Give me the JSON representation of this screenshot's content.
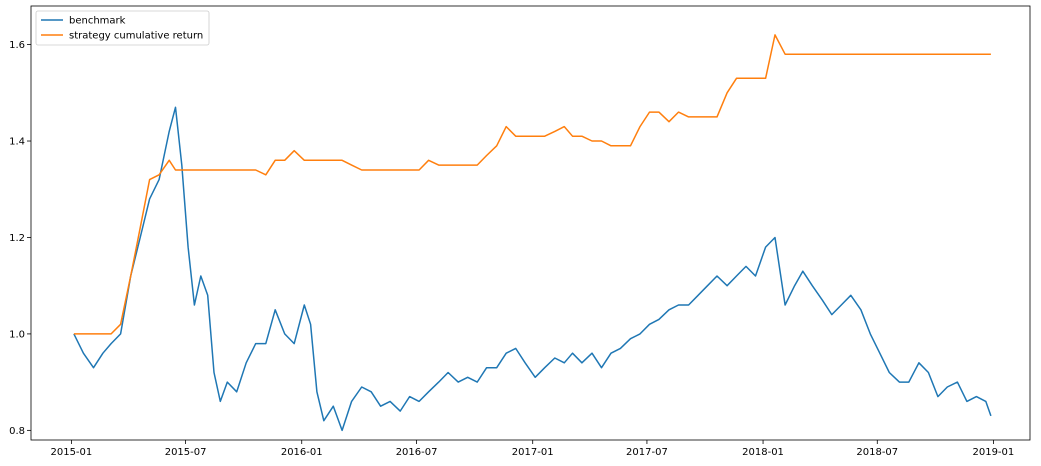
{
  "chart_data": {
    "type": "line",
    "title": "",
    "xlabel": "",
    "ylabel": "",
    "x_ticks": [
      "2015-01",
      "2015-07",
      "2016-01",
      "2016-07",
      "2017-01",
      "2017-07",
      "2018-01",
      "2018-07",
      "2019-01"
    ],
    "y_ticks": [
      "0.8",
      "1.0",
      "1.2",
      "1.4",
      "1.6"
    ],
    "xlim": [
      "2014-10-29",
      "2019-02-28"
    ],
    "ylim": [
      0.78,
      1.68
    ],
    "grid": false,
    "legend_position": "top-left",
    "x": [
      "2015-01-05",
      "2015-01-20",
      "2015-02-05",
      "2015-02-20",
      "2015-03-05",
      "2015-03-20",
      "2015-04-05",
      "2015-04-20",
      "2015-05-05",
      "2015-05-20",
      "2015-06-05",
      "2015-06-15",
      "2015-06-25",
      "2015-07-05",
      "2015-07-15",
      "2015-07-25",
      "2015-08-05",
      "2015-08-15",
      "2015-08-25",
      "2015-09-05",
      "2015-09-20",
      "2015-10-05",
      "2015-10-20",
      "2015-11-05",
      "2015-11-20",
      "2015-12-05",
      "2015-12-20",
      "2016-01-05",
      "2016-01-15",
      "2016-01-25",
      "2016-02-05",
      "2016-02-20",
      "2016-03-05",
      "2016-03-20",
      "2016-04-05",
      "2016-04-20",
      "2016-05-05",
      "2016-05-20",
      "2016-06-05",
      "2016-06-20",
      "2016-07-05",
      "2016-07-20",
      "2016-08-05",
      "2016-08-20",
      "2016-09-05",
      "2016-09-20",
      "2016-10-05",
      "2016-10-20",
      "2016-11-05",
      "2016-11-20",
      "2016-12-05",
      "2016-12-20",
      "2017-01-05",
      "2017-01-20",
      "2017-02-05",
      "2017-02-20",
      "2017-03-05",
      "2017-03-20",
      "2017-04-05",
      "2017-04-20",
      "2017-05-05",
      "2017-05-20",
      "2017-06-05",
      "2017-06-20",
      "2017-07-05",
      "2017-07-20",
      "2017-08-05",
      "2017-08-20",
      "2017-09-05",
      "2017-09-20",
      "2017-10-05",
      "2017-10-20",
      "2017-11-05",
      "2017-11-20",
      "2017-12-05",
      "2017-12-20",
      "2018-01-05",
      "2018-01-20",
      "2018-02-05",
      "2018-02-20",
      "2018-03-05",
      "2018-03-20",
      "2018-04-05",
      "2018-04-20",
      "2018-05-05",
      "2018-05-20",
      "2018-06-05",
      "2018-06-20",
      "2018-07-05",
      "2018-07-20",
      "2018-08-05",
      "2018-08-20",
      "2018-09-05",
      "2018-09-20",
      "2018-10-05",
      "2018-10-20",
      "2018-11-05",
      "2018-11-20",
      "2018-12-05",
      "2018-12-20",
      "2018-12-28"
    ],
    "series": [
      {
        "name": "benchmark",
        "color": "#1f77b4",
        "values": [
          1.0,
          0.96,
          0.93,
          0.96,
          0.98,
          1.0,
          1.12,
          1.2,
          1.28,
          1.32,
          1.42,
          1.47,
          1.35,
          1.18,
          1.06,
          1.12,
          1.08,
          0.92,
          0.86,
          0.9,
          0.88,
          0.94,
          0.98,
          0.98,
          1.05,
          1.0,
          0.98,
          1.06,
          1.02,
          0.88,
          0.82,
          0.85,
          0.8,
          0.86,
          0.89,
          0.88,
          0.85,
          0.86,
          0.84,
          0.87,
          0.86,
          0.88,
          0.9,
          0.92,
          0.9,
          0.91,
          0.9,
          0.93,
          0.93,
          0.96,
          0.97,
          0.94,
          0.91,
          0.93,
          0.95,
          0.94,
          0.96,
          0.94,
          0.96,
          0.93,
          0.96,
          0.97,
          0.99,
          1.0,
          1.02,
          1.03,
          1.05,
          1.06,
          1.06,
          1.08,
          1.1,
          1.12,
          1.1,
          1.12,
          1.14,
          1.12,
          1.18,
          1.2,
          1.06,
          1.1,
          1.13,
          1.1,
          1.07,
          1.04,
          1.06,
          1.08,
          1.05,
          1.0,
          0.96,
          0.92,
          0.9,
          0.9,
          0.94,
          0.92,
          0.87,
          0.89,
          0.9,
          0.86,
          0.87,
          0.86,
          0.83
        ]
      },
      {
        "name": "strategy cumulative return",
        "color": "#ff7f0e",
        "values": [
          1.0,
          1.0,
          1.0,
          1.0,
          1.0,
          1.02,
          1.12,
          1.22,
          1.32,
          1.33,
          1.36,
          1.34,
          1.34,
          1.34,
          1.34,
          1.34,
          1.34,
          1.34,
          1.34,
          1.34,
          1.34,
          1.34,
          1.34,
          1.33,
          1.36,
          1.36,
          1.38,
          1.36,
          1.36,
          1.36,
          1.36,
          1.36,
          1.36,
          1.35,
          1.34,
          1.34,
          1.34,
          1.34,
          1.34,
          1.34,
          1.34,
          1.36,
          1.35,
          1.35,
          1.35,
          1.35,
          1.35,
          1.37,
          1.39,
          1.43,
          1.41,
          1.41,
          1.41,
          1.41,
          1.42,
          1.43,
          1.41,
          1.41,
          1.4,
          1.4,
          1.39,
          1.39,
          1.39,
          1.43,
          1.46,
          1.46,
          1.44,
          1.46,
          1.45,
          1.45,
          1.45,
          1.45,
          1.5,
          1.53,
          1.53,
          1.53,
          1.53,
          1.62,
          1.58,
          1.58,
          1.58,
          1.58,
          1.58,
          1.58,
          1.58,
          1.58,
          1.58,
          1.58,
          1.58,
          1.58,
          1.58,
          1.58,
          1.58,
          1.58,
          1.58,
          1.58,
          1.58,
          1.58,
          1.58,
          1.58,
          1.58
        ]
      }
    ]
  }
}
